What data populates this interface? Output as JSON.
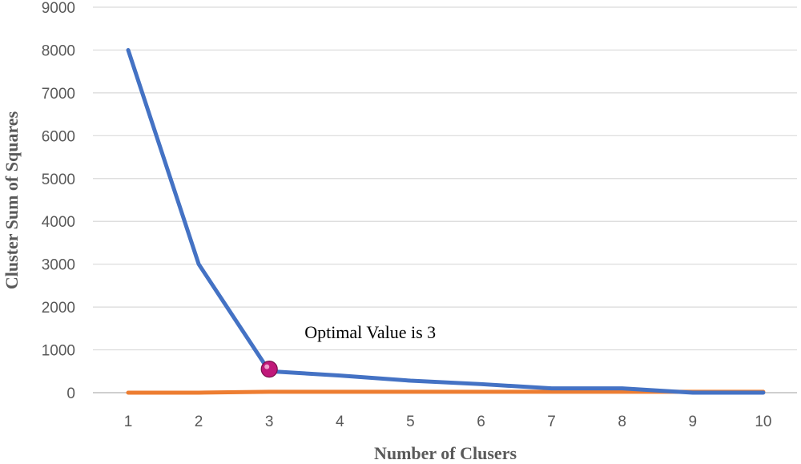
{
  "chart_data": {
    "type": "line",
    "title": "",
    "xlabel": "Number of Clusers",
    "ylabel": "Cluster Sum of Squares",
    "categories": [
      "1",
      "2",
      "3",
      "4",
      "5",
      "6",
      "7",
      "8",
      "9",
      "10"
    ],
    "yticks": [
      "0",
      "1000",
      "2000",
      "3000",
      "4000",
      "5000",
      "6000",
      "7000",
      "8000",
      "9000"
    ],
    "ylim": [
      0,
      9000
    ],
    "grid": true,
    "legend": "none",
    "series": [
      {
        "values": [
          8000,
          3000,
          500,
          400,
          280,
          200,
          100,
          100,
          0,
          0
        ],
        "color": "#4472c4"
      },
      {
        "values": [
          0,
          0,
          20,
          20,
          20,
          20,
          20,
          20,
          20,
          20
        ],
        "color": "#ed7d31"
      }
    ],
    "highlight": {
      "category": "3",
      "value": 550,
      "color": "#c0187a"
    },
    "annotation": {
      "text": "Optimal Value is 3",
      "anchor_category": "3",
      "anchor_value": 1400
    }
  }
}
